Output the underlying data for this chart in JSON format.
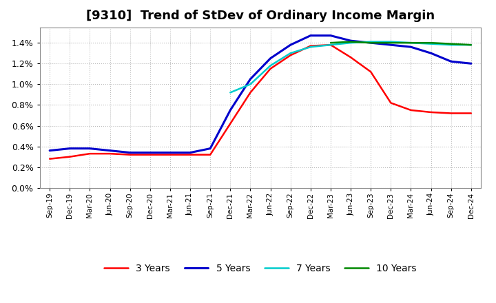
{
  "title": "[9310]  Trend of StDev of Ordinary Income Margin",
  "title_fontsize": 13,
  "background_color": "#ffffff",
  "plot_background": "#ffffff",
  "grid_color": "#bbbbbb",
  "ylim": [
    0.0,
    0.0155
  ],
  "ytick_values": [
    0.0,
    0.002,
    0.004,
    0.006,
    0.008,
    0.01,
    0.012,
    0.014
  ],
  "xtick_labels": [
    "Sep-19",
    "Dec-19",
    "Mar-20",
    "Jun-20",
    "Sep-20",
    "Dec-20",
    "Mar-21",
    "Jun-21",
    "Sep-21",
    "Dec-21",
    "Mar-22",
    "Jun-22",
    "Sep-22",
    "Dec-22",
    "Mar-23",
    "Jun-23",
    "Sep-23",
    "Dec-23",
    "Mar-24",
    "Jun-24",
    "Sep-24",
    "Dec-24"
  ],
  "series": {
    "3 Years": {
      "color": "#ff0000",
      "linewidth": 1.8,
      "x_indices": [
        0,
        1,
        2,
        3,
        4,
        5,
        6,
        7,
        8,
        9,
        10,
        11,
        12,
        13,
        14,
        15,
        16,
        17,
        18,
        19,
        20,
        21
      ],
      "values": [
        0.0028,
        0.003,
        0.0033,
        0.0033,
        0.0032,
        0.0032,
        0.0032,
        0.0032,
        0.0032,
        0.0062,
        0.0092,
        0.0115,
        0.0128,
        0.0137,
        0.0138,
        0.0126,
        0.0112,
        0.0082,
        0.0075,
        0.0073,
        0.0072,
        0.0072
      ]
    },
    "5 Years": {
      "color": "#0000cc",
      "linewidth": 2.2,
      "x_indices": [
        0,
        1,
        2,
        3,
        4,
        5,
        6,
        7,
        8,
        9,
        10,
        11,
        12,
        13,
        14,
        15,
        16,
        17,
        18,
        19,
        20,
        21
      ],
      "values": [
        0.0036,
        0.0038,
        0.0038,
        0.0036,
        0.0034,
        0.0034,
        0.0034,
        0.0034,
        0.0038,
        0.0075,
        0.0105,
        0.0125,
        0.0138,
        0.0147,
        0.0147,
        0.0142,
        0.014,
        0.0138,
        0.0136,
        0.013,
        0.0122,
        0.012
      ]
    },
    "7 Years": {
      "color": "#00cccc",
      "linewidth": 1.8,
      "x_indices": [
        9,
        10,
        11,
        12,
        13,
        14,
        15,
        16,
        17,
        18,
        19,
        20,
        21
      ],
      "values": [
        0.0092,
        0.01,
        0.0118,
        0.013,
        0.0136,
        0.0138,
        0.014,
        0.0141,
        0.0141,
        0.014,
        0.0139,
        0.0138,
        0.0138
      ]
    },
    "10 Years": {
      "color": "#008800",
      "linewidth": 1.8,
      "x_indices": [
        14,
        15,
        16,
        17,
        18,
        19,
        20,
        21
      ],
      "values": [
        0.014,
        0.0141,
        0.014,
        0.014,
        0.014,
        0.014,
        0.0139,
        0.0138
      ]
    }
  },
  "legend_ncol": 4,
  "legend_fontsize": 10
}
